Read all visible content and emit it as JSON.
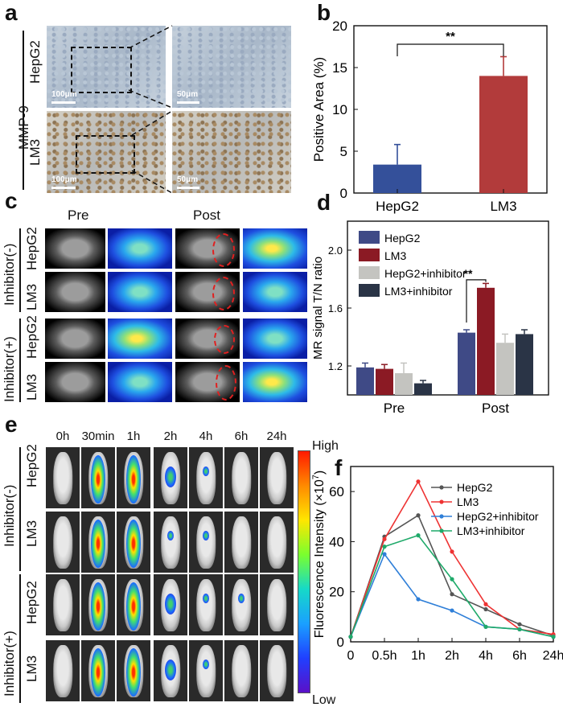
{
  "panels": {
    "a": {
      "letter": "a",
      "row_group": "MMP-9",
      "rows": [
        "HepG2",
        "LM3"
      ],
      "scale_left": "100μm",
      "scale_right": "50μm"
    },
    "b": {
      "letter": "b"
    },
    "c": {
      "letter": "c",
      "col_pre": "Pre",
      "col_post": "Post",
      "group_minus": "Inhibitor(-)",
      "group_plus": "Inhibitor(+)",
      "rows": [
        "HepG2",
        "LM3",
        "HepG2",
        "LM3"
      ]
    },
    "d": {
      "letter": "d"
    },
    "e": {
      "letter": "e",
      "times": [
        "0h",
        "30min",
        "1h",
        "2h",
        "4h",
        "6h",
        "24h"
      ],
      "group_minus": "Inhibitor(-)",
      "group_plus": "Inhibitor(+)",
      "rows": [
        "HepG2",
        "LM3",
        "HepG2",
        "LM3"
      ],
      "colorbar_high": "High",
      "colorbar_low": "Low"
    },
    "f": {
      "letter": "f"
    }
  },
  "chart_data": [
    {
      "id": "b",
      "type": "bar",
      "categories": [
        "HepG2",
        "LM3"
      ],
      "values": [
        3.4,
        14.0
      ],
      "errors": [
        2.4,
        2.3
      ],
      "colors": [
        "#34509a",
        "#b23b3b"
      ],
      "ylabel": "Positive Area (%)",
      "ylim": [
        0,
        20
      ],
      "yticks": [
        0,
        5,
        10,
        15,
        20
      ],
      "significance": "**"
    },
    {
      "id": "d",
      "type": "bar",
      "categories": [
        "Pre",
        "Post"
      ],
      "series": [
        {
          "name": "HepG2",
          "values": [
            1.19,
            1.43
          ],
          "errors": [
            0.03,
            0.02
          ],
          "color": "#3f4a86"
        },
        {
          "name": "LM3",
          "values": [
            1.18,
            1.74
          ],
          "errors": [
            0.03,
            0.03
          ],
          "color": "#8b1a24"
        },
        {
          "name": "HepG2+inhibitor",
          "values": [
            1.15,
            1.36
          ],
          "errors": [
            0.07,
            0.06
          ],
          "color": "#c4c4c0"
        },
        {
          "name": "LM3+inhibitor",
          "values": [
            1.08,
            1.42
          ],
          "errors": [
            0.02,
            0.03
          ],
          "color": "#2a3446"
        }
      ],
      "ylabel": "MR signal T/N ratio",
      "ylim": [
        1.0,
        2.2
      ],
      "yticks": [
        "1.2",
        "1.6",
        "2.0"
      ],
      "significance": "**"
    },
    {
      "id": "f",
      "type": "line",
      "x": [
        "0",
        "0.5h",
        "1h",
        "2h",
        "4h",
        "6h",
        "24h"
      ],
      "series": [
        {
          "name": "HepG2",
          "values": [
            2,
            42,
            50.5,
            19,
            13,
            7,
            2.5
          ],
          "color": "#555555"
        },
        {
          "name": "LM3",
          "values": [
            2,
            41,
            64,
            36,
            15,
            5,
            3
          ],
          "color": "#ee3333"
        },
        {
          "name": "HepG2+inhibitor",
          "values": [
            2,
            35,
            17,
            12.5,
            6,
            5,
            2
          ],
          "color": "#2f7fd8"
        },
        {
          "name": "LM3+inhibitor",
          "values": [
            2,
            38,
            42.5,
            25,
            6,
            5,
            2
          ],
          "color": "#1faa6a"
        }
      ],
      "ylabel": "Fluorescence Intensity (×10",
      "ylabel_sup": "7",
      "ylim": [
        0,
        70
      ],
      "yticks": [
        0,
        20,
        40,
        60
      ]
    }
  ]
}
